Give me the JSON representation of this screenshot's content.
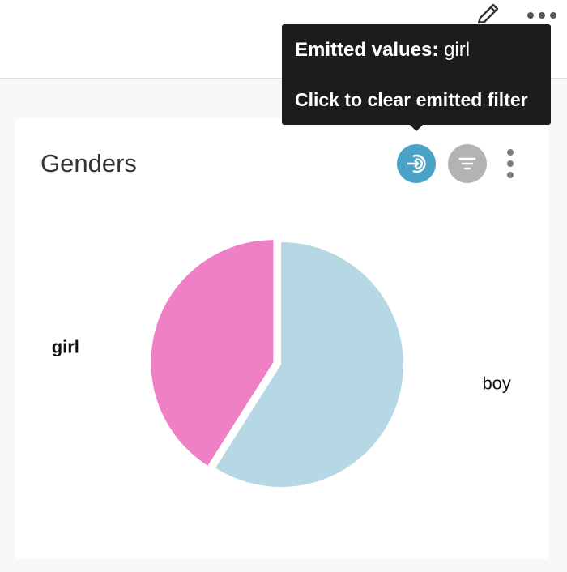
{
  "header": {
    "edit_icon": "pencil-icon",
    "more_icon": "more-horizontal-icon"
  },
  "card": {
    "title": "Genders",
    "emit_icon": "emit-filter-icon",
    "filter_icon": "filter-icon",
    "menu_icon": "more-vertical-icon",
    "colors": {
      "emit_active": "#4aa3c7",
      "filter_inactive": "#b3b3b3"
    }
  },
  "tooltip": {
    "label": "Emitted values:",
    "value": "girl",
    "action": "Click to clear emitted filter"
  },
  "chart_data": {
    "type": "pie",
    "categories": [
      "girl",
      "boy"
    ],
    "values": [
      41,
      59
    ],
    "colors": [
      "#f080c6",
      "#b5d8e4"
    ],
    "selected": "girl",
    "title": ""
  }
}
